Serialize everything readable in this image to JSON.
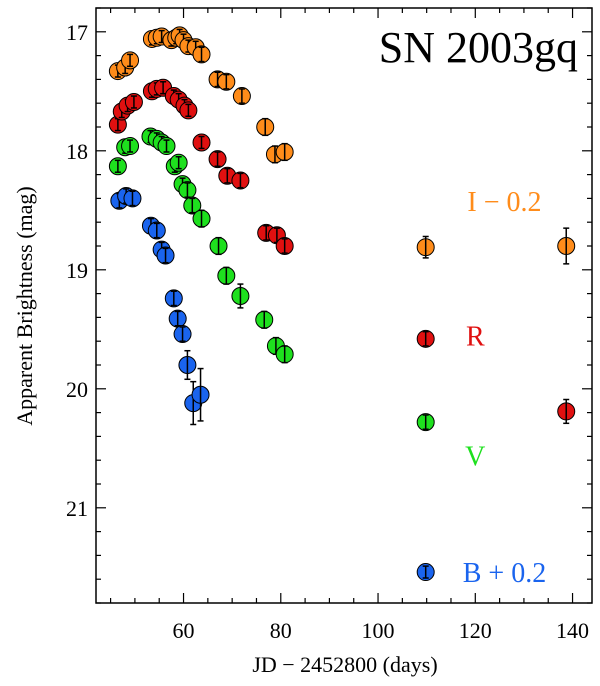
{
  "chart_data": {
    "type": "scatter",
    "title": "SN 2003gq",
    "xlabel": "JD − 2452800 (days)",
    "ylabel": "Apparent Brightness (mag)",
    "xlim": [
      42,
      144
    ],
    "ylim": [
      21.8,
      16.8
    ],
    "y_inverted": true,
    "xticks": [
      60,
      80,
      100,
      120,
      140
    ],
    "yticks": [
      17,
      18,
      19,
      20,
      21
    ],
    "grid": false,
    "legend": "inline labels on right",
    "series": [
      {
        "name": "I − 0.2",
        "color": "#ff8c1a",
        "label_pos": [
          126,
          18.42
        ],
        "points": [
          [
            46.5,
            17.33,
            0.05
          ],
          [
            48.0,
            17.3,
            0.05
          ],
          [
            49.0,
            17.24,
            0.05
          ],
          [
            53.5,
            17.06,
            0.05
          ],
          [
            54.5,
            17.05,
            0.05
          ],
          [
            55.5,
            17.04,
            0.05
          ],
          [
            57.5,
            17.07,
            0.05
          ],
          [
            58.5,
            17.05,
            0.05
          ],
          [
            59.2,
            17.03,
            0.05
          ],
          [
            60.0,
            17.07,
            0.05
          ],
          [
            61.0,
            17.12,
            0.05
          ],
          [
            62.5,
            17.13,
            0.05
          ],
          [
            63.7,
            17.19,
            0.06
          ],
          [
            67.0,
            17.4,
            0.06
          ],
          [
            68.8,
            17.42,
            0.06
          ],
          [
            72.0,
            17.54,
            0.06
          ],
          [
            76.8,
            17.8,
            0.07
          ],
          [
            78.8,
            18.03,
            0.07
          ],
          [
            80.8,
            18.01,
            0.07
          ],
          [
            109.8,
            18.81,
            0.09
          ],
          [
            138.7,
            18.8,
            0.15
          ]
        ]
      },
      {
        "name": "R",
        "color": "#e01010",
        "label_pos": [
          120,
          19.55
        ],
        "points": [
          [
            46.5,
            17.78,
            0.05
          ],
          [
            47.3,
            17.67,
            0.05
          ],
          [
            48.5,
            17.62,
            0.05
          ],
          [
            49.8,
            17.59,
            0.05
          ],
          [
            53.5,
            17.5,
            0.05
          ],
          [
            54.5,
            17.48,
            0.05
          ],
          [
            55.8,
            17.47,
            0.05
          ],
          [
            58.0,
            17.54,
            0.05
          ],
          [
            59.0,
            17.57,
            0.05
          ],
          [
            60.2,
            17.62,
            0.05
          ],
          [
            61.0,
            17.66,
            0.05
          ],
          [
            63.7,
            17.93,
            0.05
          ],
          [
            67.0,
            18.07,
            0.06
          ],
          [
            69.0,
            18.21,
            0.06
          ],
          [
            71.7,
            18.25,
            0.06
          ],
          [
            77.0,
            18.69,
            0.06
          ],
          [
            79.2,
            18.71,
            0.06
          ],
          [
            80.8,
            18.8,
            0.06
          ],
          [
            109.8,
            19.58,
            0.06
          ],
          [
            138.7,
            20.19,
            0.1
          ]
        ]
      },
      {
        "name": "V",
        "color": "#1ee01e",
        "label_pos": [
          120,
          20.56
        ],
        "points": [
          [
            46.5,
            18.13,
            0.05
          ],
          [
            48.0,
            17.97,
            0.05
          ],
          [
            49.0,
            17.96,
            0.05
          ],
          [
            53.2,
            17.88,
            0.05
          ],
          [
            54.5,
            17.9,
            0.05
          ],
          [
            55.5,
            17.93,
            0.05
          ],
          [
            56.5,
            17.96,
            0.05
          ],
          [
            58.2,
            18.13,
            0.05
          ],
          [
            59.0,
            18.1,
            0.05
          ],
          [
            59.8,
            18.28,
            0.05
          ],
          [
            60.8,
            18.33,
            0.06
          ],
          [
            61.8,
            18.46,
            0.06
          ],
          [
            63.7,
            18.57,
            0.07
          ],
          [
            67.2,
            18.8,
            0.07
          ],
          [
            68.8,
            19.05,
            0.07
          ],
          [
            71.7,
            19.22,
            0.1
          ],
          [
            76.6,
            19.42,
            0.07
          ],
          [
            79.0,
            19.64,
            0.07
          ],
          [
            80.8,
            19.71,
            0.07
          ],
          [
            109.8,
            20.28,
            0.06
          ]
        ]
      },
      {
        "name": "B + 0.2",
        "color": "#1a64ee",
        "label_pos": [
          126,
          21.54
        ],
        "points": [
          [
            46.8,
            18.42,
            0.06
          ],
          [
            48.2,
            18.38,
            0.06
          ],
          [
            49.5,
            18.4,
            0.06
          ],
          [
            53.3,
            18.63,
            0.06
          ],
          [
            54.5,
            18.67,
            0.06
          ],
          [
            55.5,
            18.83,
            0.06
          ],
          [
            56.3,
            18.88,
            0.06
          ],
          [
            58.0,
            19.24,
            0.06
          ],
          [
            58.8,
            19.41,
            0.06
          ],
          [
            59.8,
            19.54,
            0.06
          ],
          [
            60.8,
            19.8,
            0.12
          ],
          [
            62.0,
            20.12,
            0.18
          ],
          [
            63.5,
            20.05,
            0.22
          ],
          [
            109.8,
            21.54,
            0.05
          ]
        ]
      }
    ]
  }
}
